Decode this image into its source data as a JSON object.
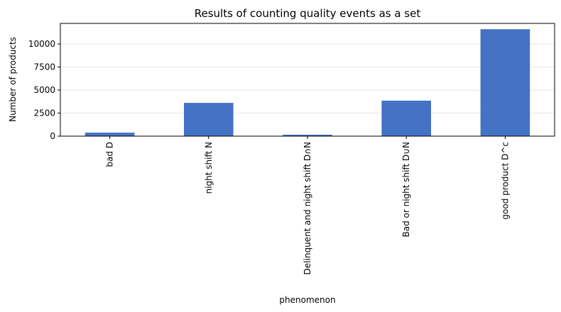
{
  "chart_data": {
    "type": "bar",
    "title": "Results of counting quality events as a set",
    "xlabel": "phenomenon",
    "ylabel": "Number of products",
    "categories": [
      "bad D",
      "night shift N",
      "Delinquent and night shift D∩N",
      "Bad or night shift D∪N",
      "good product D^c"
    ],
    "values": [
      380,
      3610,
      150,
      3850,
      11600
    ],
    "color": "#4472c4",
    "ylim": [
      0,
      12230
    ],
    "yticks": [
      0,
      2500,
      5000,
      7500,
      10000
    ],
    "grid": true
  }
}
